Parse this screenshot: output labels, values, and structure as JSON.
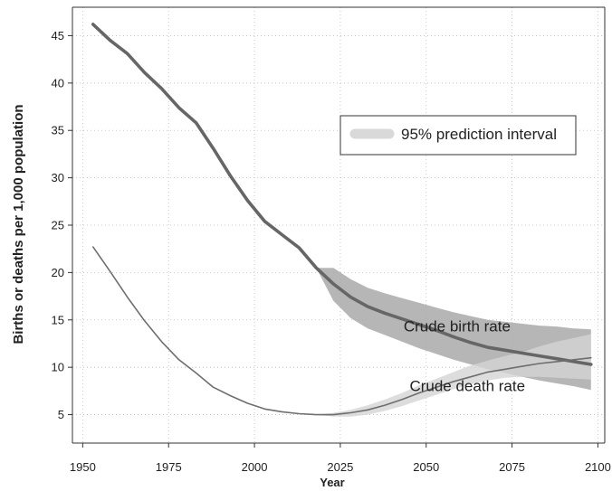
{
  "chart_data": {
    "type": "line",
    "xlabel": "Year",
    "ylabel": "Births or deaths per 1,000 population",
    "xlim": [
      1947,
      2102
    ],
    "ylim": [
      2,
      48
    ],
    "x_ticks": [
      1950,
      1975,
      2000,
      2025,
      2050,
      2075,
      2100
    ],
    "y_ticks": [
      5,
      10,
      15,
      20,
      25,
      30,
      35,
      40,
      45
    ],
    "grid": true,
    "legend": {
      "position": "top-right",
      "label": "95% prediction interval"
    },
    "colors": {
      "birth_line": "#666666",
      "death_line": "#6e6e6e",
      "birth_band": "#a9a9a9",
      "death_band": "#d4d4d4",
      "legend_swatch": "#d9d9d9"
    },
    "series": [
      {
        "name": "Crude birth rate",
        "x": [
          1953,
          1958,
          1963,
          1968,
          1973,
          1978,
          1983,
          1988,
          1993,
          1998,
          2003,
          2008,
          2013,
          2018,
          2023,
          2028,
          2033,
          2038,
          2043,
          2048,
          2053,
          2058,
          2063,
          2068,
          2073,
          2078,
          2083,
          2088,
          2093,
          2098
        ],
        "y": [
          46.2,
          44.5,
          43.1,
          41.1,
          39.4,
          37.4,
          35.8,
          33.1,
          30.2,
          27.6,
          25.4,
          24.0,
          22.6,
          20.5,
          18.8,
          17.4,
          16.4,
          15.7,
          15.1,
          14.5,
          13.9,
          13.2,
          12.6,
          12.1,
          11.8,
          11.5,
          11.2,
          10.9,
          10.6,
          10.3
        ],
        "band_x": [
          2018,
          2023,
          2028,
          2033,
          2038,
          2043,
          2048,
          2053,
          2058,
          2063,
          2068,
          2073,
          2078,
          2083,
          2088,
          2093,
          2098
        ],
        "band_lower": [
          20.5,
          17.0,
          15.2,
          14.1,
          13.4,
          12.7,
          12.0,
          11.4,
          10.8,
          10.3,
          9.8,
          9.4,
          9.0,
          8.6,
          8.3,
          8.0,
          7.6
        ],
        "band_upper": [
          20.5,
          20.5,
          19.3,
          18.4,
          17.8,
          17.3,
          16.8,
          16.3,
          15.8,
          15.4,
          15.0,
          14.8,
          14.6,
          14.4,
          14.3,
          14.1,
          14.0
        ]
      },
      {
        "name": "Crude death rate",
        "x": [
          1953,
          1958,
          1963,
          1968,
          1973,
          1978,
          1983,
          1988,
          1993,
          1998,
          2003,
          2008,
          2013,
          2018,
          2023,
          2028,
          2033,
          2038,
          2043,
          2048,
          2053,
          2058,
          2063,
          2068,
          2073,
          2078,
          2083,
          2088,
          2093,
          2098
        ],
        "y": [
          22.7,
          20.1,
          17.4,
          14.9,
          12.7,
          10.8,
          9.4,
          7.9,
          7.0,
          6.2,
          5.6,
          5.3,
          5.1,
          5.0,
          5.0,
          5.2,
          5.5,
          6.0,
          6.6,
          7.3,
          7.9,
          8.5,
          9.0,
          9.5,
          9.8,
          10.1,
          10.4,
          10.6,
          10.8,
          11.0
        ],
        "band_x": [
          2018,
          2023,
          2028,
          2033,
          2038,
          2043,
          2048,
          2053,
          2058,
          2063,
          2068,
          2073,
          2078,
          2083,
          2088,
          2093,
          2098
        ],
        "band_lower": [
          5.0,
          4.8,
          4.8,
          5.0,
          5.4,
          5.9,
          6.5,
          7.1,
          7.7,
          8.2,
          8.6,
          8.9,
          9.0,
          9.0,
          8.9,
          8.8,
          8.7
        ],
        "band_upper": [
          5.0,
          5.2,
          5.5,
          6.0,
          6.6,
          7.3,
          8.1,
          8.8,
          9.5,
          10.2,
          10.7,
          11.2,
          11.6,
          12.2,
          12.7,
          13.1,
          13.5
        ]
      }
    ],
    "annotations": [
      {
        "text": "Crude birth rate",
        "x": 2059,
        "y": 13.8
      },
      {
        "text": "Crude death rate",
        "x": 2062,
        "y": 7.5
      }
    ]
  }
}
